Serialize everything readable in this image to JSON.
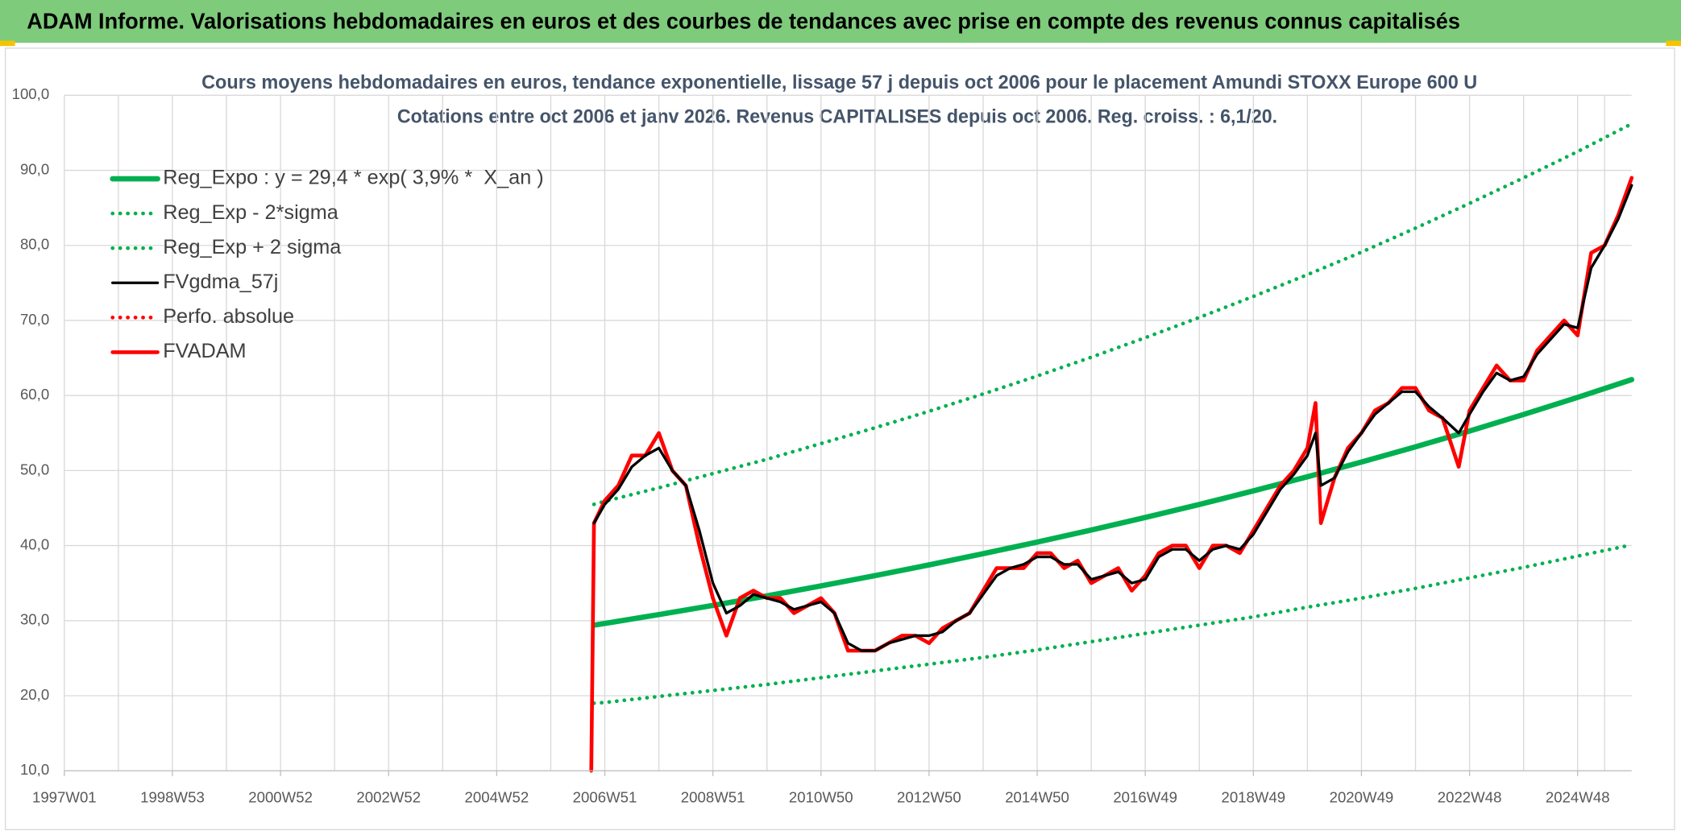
{
  "header": {
    "title": "ADAM Informe. Valorisations hebdomadaires en euros et des courbes de tendances avec prise en compte des revenus connus capitalisés"
  },
  "chart_data": {
    "type": "line",
    "title": "Cours moyens hebdomadaires en euros, tendance exponentielle, lissage 57 j depuis oct 2006 pour le placement Amundi STOXX Europe 600 U",
    "subtitle": "Cotations entre oct 2006 et janv 2026. Revenus CAPITALISES depuis oct 2006. Reg. croiss. : 6,1/20.",
    "xlim": [
      1997,
      2026
    ],
    "xticks": [
      {
        "value": 1997,
        "label": "1997W01"
      },
      {
        "value": 1999,
        "label": "1998W53"
      },
      {
        "value": 2001,
        "label": "2000W52"
      },
      {
        "value": 2003,
        "label": "2002W52"
      },
      {
        "value": 2005,
        "label": "2004W52"
      },
      {
        "value": 2007,
        "label": "2006W51"
      },
      {
        "value": 2009,
        "label": "2008W51"
      },
      {
        "value": 2011,
        "label": "2010W50"
      },
      {
        "value": 2013,
        "label": "2012W50"
      },
      {
        "value": 2015,
        "label": "2014W50"
      },
      {
        "value": 2017,
        "label": "2016W49"
      },
      {
        "value": 2019,
        "label": "2018W49"
      },
      {
        "value": 2021,
        "label": "2020W49"
      },
      {
        "value": 2023,
        "label": "2022W48"
      },
      {
        "value": 2025,
        "label": "2024W48"
      }
    ],
    "ylim": [
      10,
      100
    ],
    "yticks": [
      {
        "value": 10,
        "label": "10,0"
      },
      {
        "value": 20,
        "label": "20,0"
      },
      {
        "value": 30,
        "label": "30,0"
      },
      {
        "value": 40,
        "label": "40,0"
      },
      {
        "value": 50,
        "label": "50,0"
      },
      {
        "value": 60,
        "label": "60,0"
      },
      {
        "value": 70,
        "label": "70,0"
      },
      {
        "value": 80,
        "label": "80,0"
      },
      {
        "value": 90,
        "label": "90,0"
      },
      {
        "value": 100,
        "label": "100,0"
      }
    ],
    "grid": true,
    "legend": "upper left",
    "x": [
      2006.75,
      2006.8,
      2007,
      2007.25,
      2007.5,
      2007.75,
      2008,
      2008.25,
      2008.5,
      2008.75,
      2009,
      2009.25,
      2009.5,
      2009.75,
      2010,
      2010.25,
      2010.5,
      2010.75,
      2011,
      2011.25,
      2011.5,
      2011.75,
      2012,
      2012.25,
      2012.5,
      2012.75,
      2013,
      2013.25,
      2013.5,
      2013.75,
      2014,
      2014.25,
      2014.5,
      2014.75,
      2015,
      2015.25,
      2015.5,
      2015.75,
      2016,
      2016.25,
      2016.5,
      2016.75,
      2017,
      2017.25,
      2017.5,
      2017.75,
      2018,
      2018.25,
      2018.5,
      2018.75,
      2019,
      2019.25,
      2019.5,
      2019.75,
      2020,
      2020.15,
      2020.25,
      2020.5,
      2020.75,
      2021,
      2021.25,
      2021.5,
      2021.75,
      2022,
      2022.25,
      2022.5,
      2022.8,
      2023,
      2023.25,
      2023.5,
      2023.75,
      2024,
      2024.25,
      2024.5,
      2024.75,
      2025,
      2025.25,
      2025.5,
      2025.75,
      2026
    ],
    "series": [
      {
        "name": "Reg_Expo : y = 29,4 * exp( 3,9% *  X_an )",
        "color": "#00b050",
        "style": "solid",
        "x": [
          2006.8,
          2007,
          2008,
          2009,
          2010,
          2011,
          2012,
          2013,
          2014,
          2015,
          2016,
          2017,
          2018,
          2019,
          2020,
          2021,
          2022,
          2023,
          2024,
          2025,
          2026
        ],
        "values": [
          29.4,
          29.63,
          30.81,
          32.03,
          33.3,
          34.63,
          36.0,
          37.43,
          38.92,
          40.47,
          42.07,
          43.75,
          45.48,
          47.29,
          49.17,
          51.13,
          53.16,
          55.27,
          57.47,
          59.75,
          62.12
        ]
      },
      {
        "name": "Reg_Exp - 2*sigma",
        "color": "#00b050",
        "style": "dotted",
        "x": [
          2006.8,
          2007,
          2008,
          2009,
          2010,
          2011,
          2012,
          2013,
          2014,
          2015,
          2016,
          2017,
          2018,
          2019,
          2020,
          2021,
          2022,
          2023,
          2024,
          2025,
          2026
        ],
        "values": [
          19.0,
          19.1,
          19.9,
          20.7,
          21.5,
          22.4,
          23.3,
          24.2,
          25.1,
          26.1,
          27.2,
          28.3,
          29.4,
          30.5,
          31.8,
          33.0,
          34.3,
          35.7,
          37.1,
          38.6,
          40.1
        ]
      },
      {
        "name": "Reg_Exp + 2 sigma",
        "color": "#00b050",
        "style": "dotted",
        "x": [
          2006.8,
          2007,
          2008,
          2009,
          2010,
          2011,
          2012,
          2013,
          2014,
          2015,
          2016,
          2017,
          2018,
          2019,
          2020,
          2021,
          2022,
          2023,
          2024,
          2025,
          2026
        ],
        "values": [
          45.5,
          45.9,
          47.7,
          49.6,
          51.5,
          53.6,
          55.7,
          57.9,
          60.2,
          62.6,
          65.1,
          67.7,
          70.4,
          73.2,
          76.1,
          79.1,
          82.3,
          85.6,
          89.0,
          92.5,
          96.2
        ]
      },
      {
        "name": "FVgdma_57j",
        "color": "#000000",
        "style": "solid",
        "values": [
          null,
          43,
          45.5,
          47.5,
          50.5,
          52,
          53,
          50,
          48,
          42,
          35,
          31,
          32,
          33.5,
          33,
          32.5,
          31.5,
          32,
          32.5,
          31,
          27,
          26,
          26,
          27,
          27.5,
          28,
          28,
          28.5,
          30,
          31,
          33.5,
          36,
          37,
          37.5,
          38.5,
          38.5,
          37.5,
          37.5,
          35.5,
          36,
          36.5,
          35,
          35.5,
          38.5,
          39.5,
          39.5,
          38,
          39.5,
          40,
          39.5,
          41.5,
          44.5,
          47.5,
          49.5,
          52,
          55,
          48,
          49,
          52.5,
          55,
          57.5,
          59,
          60.5,
          60.5,
          58.5,
          57,
          55,
          57.5,
          60.5,
          63,
          62,
          62.5,
          65.5,
          67.5,
          69.5,
          69,
          77,
          80,
          83.5,
          88
        ]
      },
      {
        "name": "Perfo. absolue",
        "color": "#ff0000",
        "style": "dotted"
      },
      {
        "name": "FVADAM",
        "color": "#ff0000",
        "style": "solid",
        "values": [
          10,
          43,
          46,
          48,
          52,
          52,
          55,
          50,
          48,
          40,
          33,
          28,
          33,
          34,
          33,
          33,
          31,
          32,
          33,
          31,
          26,
          26,
          26,
          27,
          28,
          28,
          27,
          29,
          30,
          31,
          34,
          37,
          37,
          37,
          39,
          39,
          37,
          38,
          35,
          36,
          37,
          34,
          36,
          39,
          40,
          40,
          37,
          40,
          40,
          39,
          42,
          45,
          48,
          50,
          53,
          59,
          43,
          49,
          53,
          55,
          58,
          59,
          61,
          61,
          58,
          57,
          50.5,
          58,
          61,
          64,
          62,
          62,
          66,
          68,
          70,
          68,
          79,
          80,
          84,
          89
        ]
      }
    ]
  }
}
